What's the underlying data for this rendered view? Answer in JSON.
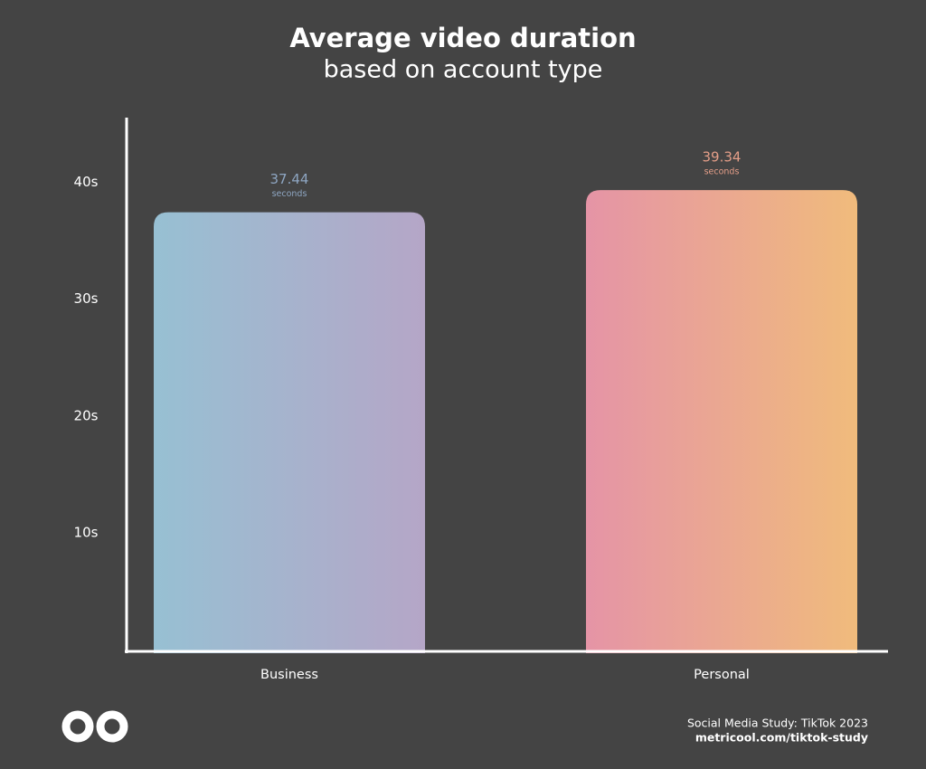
{
  "chart_data": {
    "type": "bar",
    "title": "Average video duration",
    "subtitle": "based on account type",
    "categories": [
      "Business",
      "Personal"
    ],
    "values": [
      37.44,
      39.34
    ],
    "value_unit": "seconds",
    "colors": [
      [
        "#97c0d3",
        "#b5a6c7"
      ],
      [
        "#e594a6",
        "#f0bb7c"
      ]
    ],
    "label_colors": [
      "#8ea6c2",
      "#e49e88"
    ],
    "ylim": [
      0,
      45
    ],
    "yticks": [
      {
        "value": 10,
        "label": "10s"
      },
      {
        "value": 20,
        "label": "20s"
      },
      {
        "value": 30,
        "label": "30s"
      },
      {
        "value": 40,
        "label": "40s"
      }
    ],
    "source": "Social Media Study: TikTok 2023",
    "url": "metricool.com/tiktok-study"
  }
}
